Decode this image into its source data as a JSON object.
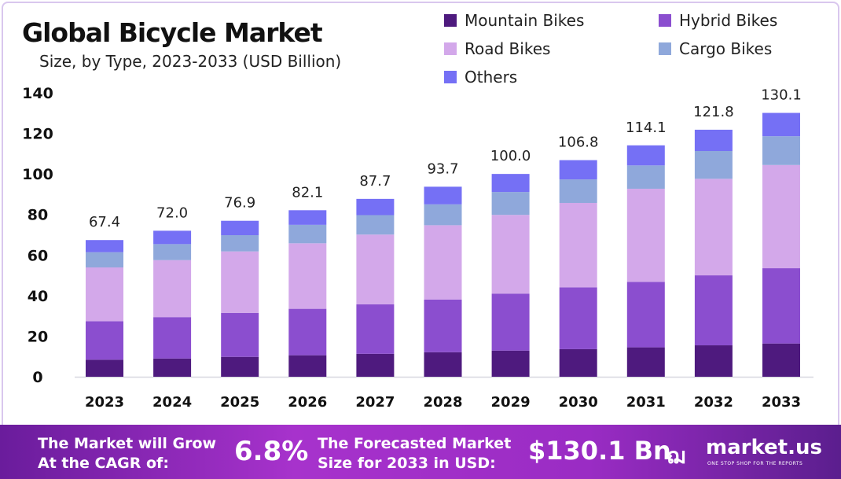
{
  "header": {
    "title": "Global Bicycle Market",
    "subtitle": "Size, by Type, 2023-2033 (USD Billion)"
  },
  "chart_data": {
    "type": "bar",
    "stacked": true,
    "title": "Global Bicycle Market",
    "subtitle": "Size, by Type, 2023-2033 (USD Billion)",
    "categories": [
      "2023",
      "2024",
      "2025",
      "2026",
      "2027",
      "2028",
      "2029",
      "2030",
      "2031",
      "2032",
      "2033"
    ],
    "series": [
      {
        "name": "Mountain Bikes",
        "color": "#4e1a7e",
        "values": [
          8.4,
          9.0,
          9.8,
          10.6,
          11.3,
          12.1,
          12.9,
          13.6,
          14.5,
          15.5,
          16.4
        ]
      },
      {
        "name": "Hybrid Bikes",
        "color": "#8b4ecf",
        "values": [
          19.0,
          20.4,
          21.7,
          22.9,
          24.4,
          26.0,
          28.1,
          30.5,
          32.3,
          34.5,
          37.1
        ]
      },
      {
        "name": "Road Bikes",
        "color": "#d3a8ea",
        "values": [
          26.5,
          28.1,
          30.3,
          32.3,
          34.4,
          36.6,
          38.8,
          41.6,
          45.9,
          47.6,
          50.9
        ]
      },
      {
        "name": "Cargo Bikes",
        "color": "#8fa8db",
        "values": [
          7.5,
          7.9,
          8.0,
          9.1,
          9.6,
          10.3,
          11.3,
          11.6,
          11.5,
          13.7,
          14.2
        ]
      },
      {
        "name": "Others",
        "color": "#7570f5",
        "values": [
          6.0,
          6.6,
          7.1,
          7.2,
          8.0,
          8.7,
          8.9,
          9.5,
          9.9,
          10.5,
          11.5
        ]
      }
    ],
    "totals": [
      "67.4",
      "72.0",
      "76.9",
      "82.1",
      "87.7",
      "93.7",
      "100.0",
      "106.8",
      "114.1",
      "121.8",
      "130.1"
    ],
    "yticks": [
      "0",
      "20",
      "40",
      "60",
      "80",
      "100",
      "120",
      "140"
    ],
    "ylim": [
      0,
      140
    ],
    "xlabel": "",
    "ylabel": "",
    "legend_position": "top-right",
    "grid": false
  },
  "banner": {
    "cagr_label_1": "The Market will Grow",
    "cagr_label_2": "At the CAGR of:",
    "cagr_value": "6.8%",
    "forecast_label_1": "The Forecasted Market",
    "forecast_label_2": "Size for 2033 in USD:",
    "forecast_value": "$130.1 Bn",
    "brand": "market.us",
    "tagline": "ONE STOP SHOP FOR THE REPORTS"
  }
}
